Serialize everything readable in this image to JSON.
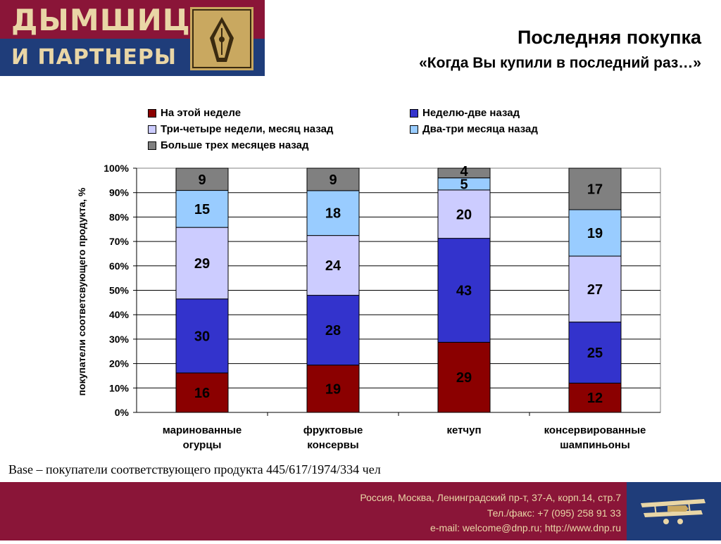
{
  "logo": {
    "line1": "ДЫМШИЦ",
    "line2": "И ПАРТНЕРЫ"
  },
  "header": {
    "title": "Последняя покупка",
    "subtitle": "«Когда Вы купили в последний раз…»"
  },
  "colors": {
    "brand_red": "#8a1538",
    "brand_blue": "#1f3d7a",
    "brand_gold": "#e9d6a6"
  },
  "chart_data": {
    "type": "bar",
    "stacked": true,
    "percent": true,
    "categories": [
      "маринованные огурцы",
      "фруктовые консервы",
      "кетчуп",
      "консервированные шампиньоны"
    ],
    "series": [
      {
        "name": "На этой неделе",
        "color": "#8b0000",
        "values": [
          16,
          19,
          29,
          12
        ]
      },
      {
        "name": "Неделю-две назад",
        "color": "#3333cc",
        "values": [
          30,
          28,
          43,
          25
        ]
      },
      {
        "name": "Три-четыре недели, месяц назад",
        "color": "#ccccff",
        "values": [
          29,
          24,
          20,
          27
        ]
      },
      {
        "name": "Два-три месяца назад",
        "color": "#99ccff",
        "values": [
          15,
          18,
          5,
          19
        ]
      },
      {
        "name": "Больше трех месяцев назад",
        "color": "#808080",
        "values": [
          9,
          9,
          4,
          17
        ]
      }
    ],
    "ylabel": "покупатели соответсвующего продукта, %",
    "ylim": [
      0,
      100
    ],
    "yticks": [
      "0%",
      "10%",
      "20%",
      "30%",
      "40%",
      "50%",
      "60%",
      "70%",
      "80%",
      "90%",
      "100%"
    ],
    "grid": true,
    "legend": "top"
  },
  "note": "Base – покупатели соответствующего продукта 445/617/1974/334 чел",
  "footer": {
    "address": "Россия, Москва, Ленинградский пр-т, 37-А, корп.14, стр.7",
    "phone": "Тел./факс: +7 (095) 258 91 33",
    "contacts": "e-mail: welcome@dnp.ru; http://www.dnp.ru"
  }
}
